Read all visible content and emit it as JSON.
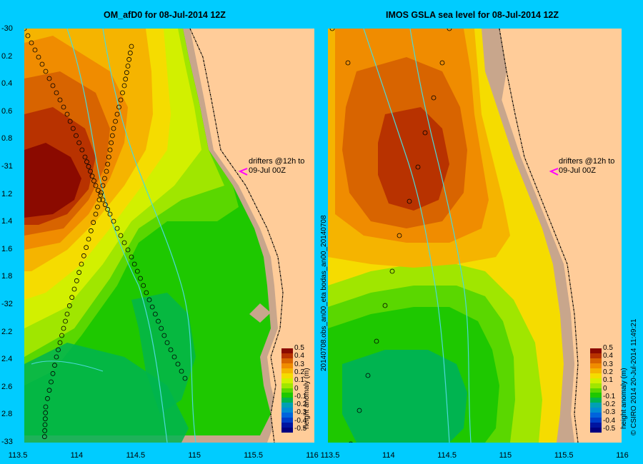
{
  "left_panel": {
    "title": "OM_afD0 for 08-Jul-2014 12Z",
    "y_ticks": [
      "-30",
      "-30.2",
      "-30.4",
      "-30.6",
      "-30.8",
      "-31",
      "-31.2",
      "-31.4",
      "-31.6",
      "-31.8",
      "-32",
      "-32.2",
      "-32.4",
      "-32.6",
      "-32.8",
      "-33"
    ],
    "y_tick_display": [
      "-30",
      "0.2",
      "0.4",
      "0.6",
      "0.8",
      "-31",
      "1.2",
      "1.4",
      "1.6",
      "1.8",
      "-32",
      "2.2",
      "2.4",
      "2.6",
      "2.8",
      "-33"
    ],
    "x_ticks": [
      "113.5",
      "114",
      "114.5",
      "115",
      "115.5",
      "116"
    ],
    "drifter_note": [
      "drifters @12h to",
      "09-Jul 00Z"
    ]
  },
  "right_panel": {
    "title": "IMOS GSLA sea level  for 08-Jul-2014 12Z",
    "x_ticks": [
      "113.5",
      "114",
      "114.5",
      "115",
      "115.5",
      "116"
    ],
    "drifter_note": [
      "drifters @12h to",
      "09-Jul 00Z"
    ],
    "vertical_label": "20140708.obs_an00_eta   bodas_an00_20140708",
    "credit": "© CSIRO 2014   20-Jul-2014 11:49:21"
  },
  "colorbar": {
    "title": "height anomaly (m)",
    "ticks": [
      "0.5",
      "0.4",
      "0.3",
      "0.2",
      "0.1",
      "0",
      "-0.1",
      "-0.2",
      "-0.3",
      "-0.4",
      "-0.5"
    ],
    "colors": [
      "#8b0a00",
      "#b83200",
      "#d86400",
      "#f08c00",
      "#f5b400",
      "#f5dc00",
      "#d2f000",
      "#a0e600",
      "#5ad700",
      "#1ec800",
      "#00b450",
      "#00a0b4",
      "#008cd2",
      "#0064dc",
      "#003cc8",
      "#0014a0",
      "#000080"
    ]
  },
  "map_colors": {
    "ocean_bg": "#00ccff",
    "land": "#ffcc99",
    "shelf_grey": "#c8a68c",
    "river": "#4cd9d9"
  }
}
